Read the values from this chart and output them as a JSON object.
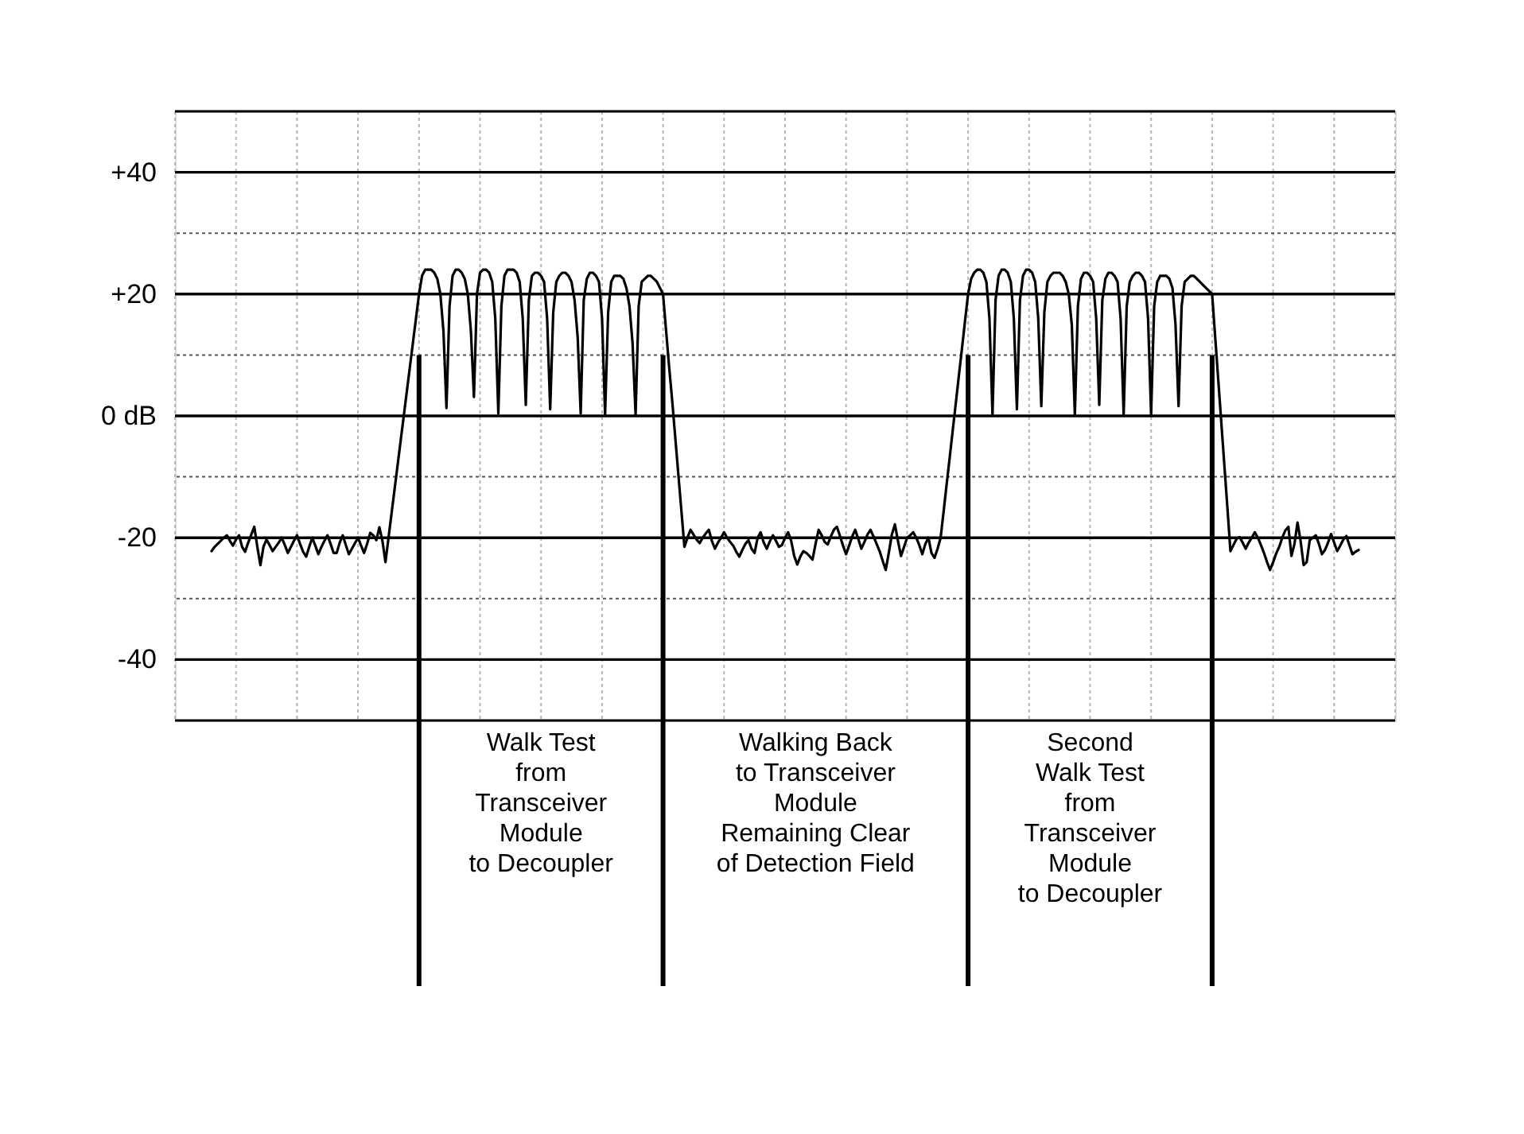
{
  "chart_data": {
    "type": "line",
    "categories": [
      null,
      null,
      null,
      null,
      null,
      null,
      null,
      null,
      null,
      null,
      null,
      null,
      null,
      null,
      null,
      null,
      null,
      null,
      null,
      null,
      null,
      null,
      null,
      null,
      null,
      null,
      null,
      null,
      null,
      null,
      null,
      null,
      null,
      null,
      null,
      null,
      null,
      null,
      null,
      null,
      null,
      null,
      null,
      null,
      null,
      null,
      null,
      null,
      null,
      null,
      null,
      null,
      null,
      null,
      null,
      null,
      null,
      null,
      null,
      null,
      null,
      null,
      null,
      null,
      null,
      null,
      null,
      null,
      null,
      null,
      null,
      null,
      null,
      null,
      null,
      null,
      null,
      null,
      null,
      null,
      null,
      null,
      null,
      null,
      null,
      null,
      null,
      null,
      null,
      null,
      null,
      null,
      null,
      null,
      null,
      null,
      null,
      null,
      null,
      null,
      null,
      null,
      null,
      null,
      null,
      null,
      null,
      null,
      null,
      null,
      null,
      null,
      null,
      null,
      null,
      null,
      null,
      null,
      null,
      null,
      null,
      null,
      null,
      null,
      null,
      null,
      null,
      null,
      null,
      null,
      null,
      null,
      null,
      null,
      null,
      null,
      null,
      null,
      null,
      null,
      null,
      null,
      null,
      null,
      null,
      null,
      null,
      null,
      null,
      null,
      null,
      null,
      null,
      null,
      null,
      null,
      null,
      null,
      null,
      null,
      null,
      null,
      null,
      null,
      null,
      null,
      null,
      null,
      null,
      null,
      null,
      null,
      null,
      null,
      null,
      null,
      null,
      null,
      null,
      null,
      null,
      null,
      null,
      null,
      null,
      null,
      null,
      null,
      null,
      null,
      null,
      null,
      null,
      null,
      null,
      null,
      null,
      null,
      null,
      null,
      null,
      null,
      null,
      null,
      null,
      null,
      null,
      null,
      null,
      null,
      null,
      null,
      null,
      null,
      null,
      null,
      null,
      null,
      null,
      null,
      null,
      null,
      null,
      null,
      null,
      null,
      null,
      null,
      null,
      null,
      null,
      null,
      null,
      null,
      null,
      null,
      null,
      null,
      null,
      null,
      null,
      null,
      null,
      null,
      null,
      null,
      null,
      null,
      null,
      null,
      null,
      null,
      null,
      null,
      null,
      null,
      null,
      null,
      null,
      null,
      null,
      null,
      null,
      null,
      null,
      null,
      null,
      null,
      null,
      null,
      null,
      null,
      null,
      null,
      null,
      null,
      null,
      null,
      null,
      null,
      null,
      null,
      null,
      null,
      null,
      null,
      null,
      null,
      null,
      null,
      null,
      null,
      null,
      null,
      null,
      null,
      null,
      null,
      null,
      null,
      null,
      null,
      null,
      null,
      null,
      null,
      null,
      null,
      null,
      null,
      null,
      null,
      null,
      null,
      null,
      null,
      null,
      null,
      null,
      null,
      null,
      null,
      null,
      null,
      null,
      null,
      null,
      null,
      null,
      null,
      null,
      null,
      null,
      null,
      null,
      null,
      null,
      null,
      null,
      null,
      null,
      null,
      null,
      null,
      null,
      null,
      null,
      null,
      null,
      null,
      null,
      null,
      null,
      null,
      null,
      null,
      null,
      null,
      null,
      null,
      null,
      null,
      null,
      null,
      null,
      null,
      null,
      null,
      null,
      null,
      null,
      null,
      null,
      null,
      null,
      null,
      null,
      null,
      null,
      null,
      null,
      null,
      null,
      null,
      null,
      null,
      null,
      null,
      null,
      null,
      null,
      null,
      null,
      null,
      null,
      null,
      null,
      null,
      null,
      null,
      null
    ],
    "series": [
      {
        "color": "#000000",
        "values": [
          null,
          null,
          null,
          null,
          null,
          null,
          null,
          null,
          null,
          null,
          null,
          null,
          -22.2,
          -21.5,
          -21,
          -20.5,
          -20,
          -19.6,
          -20.5,
          -21.3,
          -20.3,
          -19.6,
          -21.5,
          -22.3,
          -20.8,
          -19.5,
          -18.2,
          -21.5,
          -24.5,
          -21.5,
          -20.3,
          -21.2,
          -22.2,
          -21.5,
          -20.8,
          -20,
          -21.2,
          -22.5,
          -21.5,
          -20.5,
          -19.6,
          -21,
          -22.3,
          -23.1,
          -21.5,
          -20,
          -21.3,
          -22.7,
          -21.5,
          -20.5,
          -19.6,
          -21,
          -22.5,
          -22.5,
          -20.8,
          -19.6,
          -21.2,
          -22.7,
          -21.8,
          -20.9,
          -20,
          -21.3,
          -22.5,
          -21,
          -19.2,
          -19.6,
          -20.4,
          -18.3,
          -20.5,
          -24,
          -20,
          -16,
          -12,
          -8,
          -4,
          0,
          4,
          8,
          12,
          16,
          20,
          23,
          24,
          24,
          24,
          23.5,
          22.5,
          20,
          14,
          1.3,
          18,
          23,
          24,
          24,
          23.5,
          22.5,
          20,
          14,
          3.1,
          20,
          23.5,
          24,
          24,
          23.5,
          22,
          16,
          0.4,
          18,
          23,
          24,
          24,
          24,
          23.5,
          22,
          16,
          1.8,
          19,
          23,
          23.5,
          23.5,
          23,
          22,
          16,
          1.1,
          17,
          22,
          23,
          23.5,
          23.5,
          23,
          22,
          19,
          13,
          0.4,
          19,
          22.5,
          23.5,
          23.5,
          23,
          22,
          16,
          0.2,
          17,
          22,
          23,
          23,
          23,
          22.5,
          21,
          18,
          12,
          0.2,
          18,
          22,
          22.5,
          23,
          23,
          22.5,
          22,
          21,
          20,
          14,
          8,
          2.5,
          -3.5,
          -9.5,
          -15.5,
          -21.5,
          -20,
          -18.7,
          -19.5,
          -20.3,
          -20.9,
          -20,
          -19.3,
          -18.7,
          -20.5,
          -21.8,
          -20.8,
          -20,
          -19.1,
          -20,
          -20.7,
          -21.3,
          -22.3,
          -23.1,
          -22,
          -21,
          -20.4,
          -21.8,
          -22.5,
          -20,
          -19.1,
          -20.8,
          -21.8,
          -20.6,
          -19.6,
          -20.5,
          -21.5,
          -21.2,
          -20,
          -19.1,
          -20.5,
          -23,
          -24.4,
          -23.1,
          -22.2,
          -22.5,
          -23,
          -23.6,
          -21,
          -18.7,
          -19.6,
          -20.7,
          -21.1,
          -19.8,
          -18.7,
          -18.2,
          -19.7,
          -21.3,
          -22.7,
          -21.3,
          -19.8,
          -18.7,
          -20.2,
          -21.8,
          -20.7,
          -19.5,
          -18.7,
          -19.8,
          -21,
          -22.2,
          -23.8,
          -25.3,
          -22.5,
          -19.5,
          -17.8,
          -20.5,
          -23,
          -21.5,
          -20,
          -19.6,
          -19.1,
          -20,
          -21.2,
          -22.7,
          -21,
          -20,
          -22.5,
          -23.3,
          -21.8,
          -20,
          -15.6,
          -11.1,
          -6.7,
          -2.2,
          2.2,
          6.7,
          11.1,
          15.6,
          20,
          22.5,
          23.5,
          24,
          24,
          23.5,
          22,
          16,
          0.2,
          19,
          23,
          24,
          24,
          23.5,
          22,
          16,
          1.1,
          19,
          23,
          24,
          24,
          23.5,
          22,
          16,
          1.6,
          17,
          22,
          23,
          23.5,
          23.5,
          23.5,
          23,
          22,
          20,
          15,
          0.2,
          18,
          22.5,
          23.5,
          23.5,
          23,
          22,
          16,
          1.8,
          19,
          22.5,
          23.5,
          23.5,
          23,
          22,
          16,
          0.2,
          18,
          22,
          23,
          23.5,
          23.5,
          23,
          22,
          16,
          0.2,
          18,
          22,
          23,
          23,
          23,
          22.5,
          21,
          15,
          1.6,
          18,
          22,
          22.5,
          23,
          23,
          22.5,
          22,
          21.5,
          21,
          20.5,
          20,
          13,
          6,
          -1,
          -8,
          -15,
          -22.2,
          -21.2,
          -20.2,
          -19.9,
          -20.8,
          -21.8,
          -20.8,
          -20,
          -19.1,
          -20,
          -21.2,
          -22.5,
          -24,
          -25.3,
          -24,
          -22.6,
          -21.5,
          -20,
          -18.8,
          -18.2,
          -23,
          -21,
          -17.5,
          -20.5,
          -24.5,
          -24,
          -20.4,
          -20,
          -19.6,
          -21,
          -22.7,
          -22,
          -20.8,
          -19.4,
          -20.8,
          -22.2,
          -21.3,
          -20.3,
          -19.7,
          -21.2,
          -22.7,
          -22.3,
          -22,
          null,
          null,
          null,
          null,
          null,
          null,
          null,
          null,
          null,
          null,
          null,
          null
        ]
      }
    ],
    "ylim": [
      -50,
      50
    ],
    "yticks": [
      {
        "value": 40,
        "label": "+40"
      },
      {
        "value": 30,
        "label": null
      },
      {
        "value": 20,
        "label": "+20"
      },
      {
        "value": 10,
        "label": null
      },
      {
        "value": 0,
        "label": "0 dB"
      },
      {
        "value": -10,
        "label": null
      },
      -20,
      {
        "value": -30,
        "label": null
      },
      -40
    ],
    "grid": true,
    "marker": "none",
    "line_style": "solid",
    "annotations": [
      "Walk Test\nfrom\nTransceiver\nModule\nto Decoupler",
      "Walking Back\nto Transceiver\nModule\nRemaining Clear\nof Detection Field",
      "Second\nWalk Test\nfrom\nTransceiver\nModule\nto Decoupler"
    ]
  }
}
